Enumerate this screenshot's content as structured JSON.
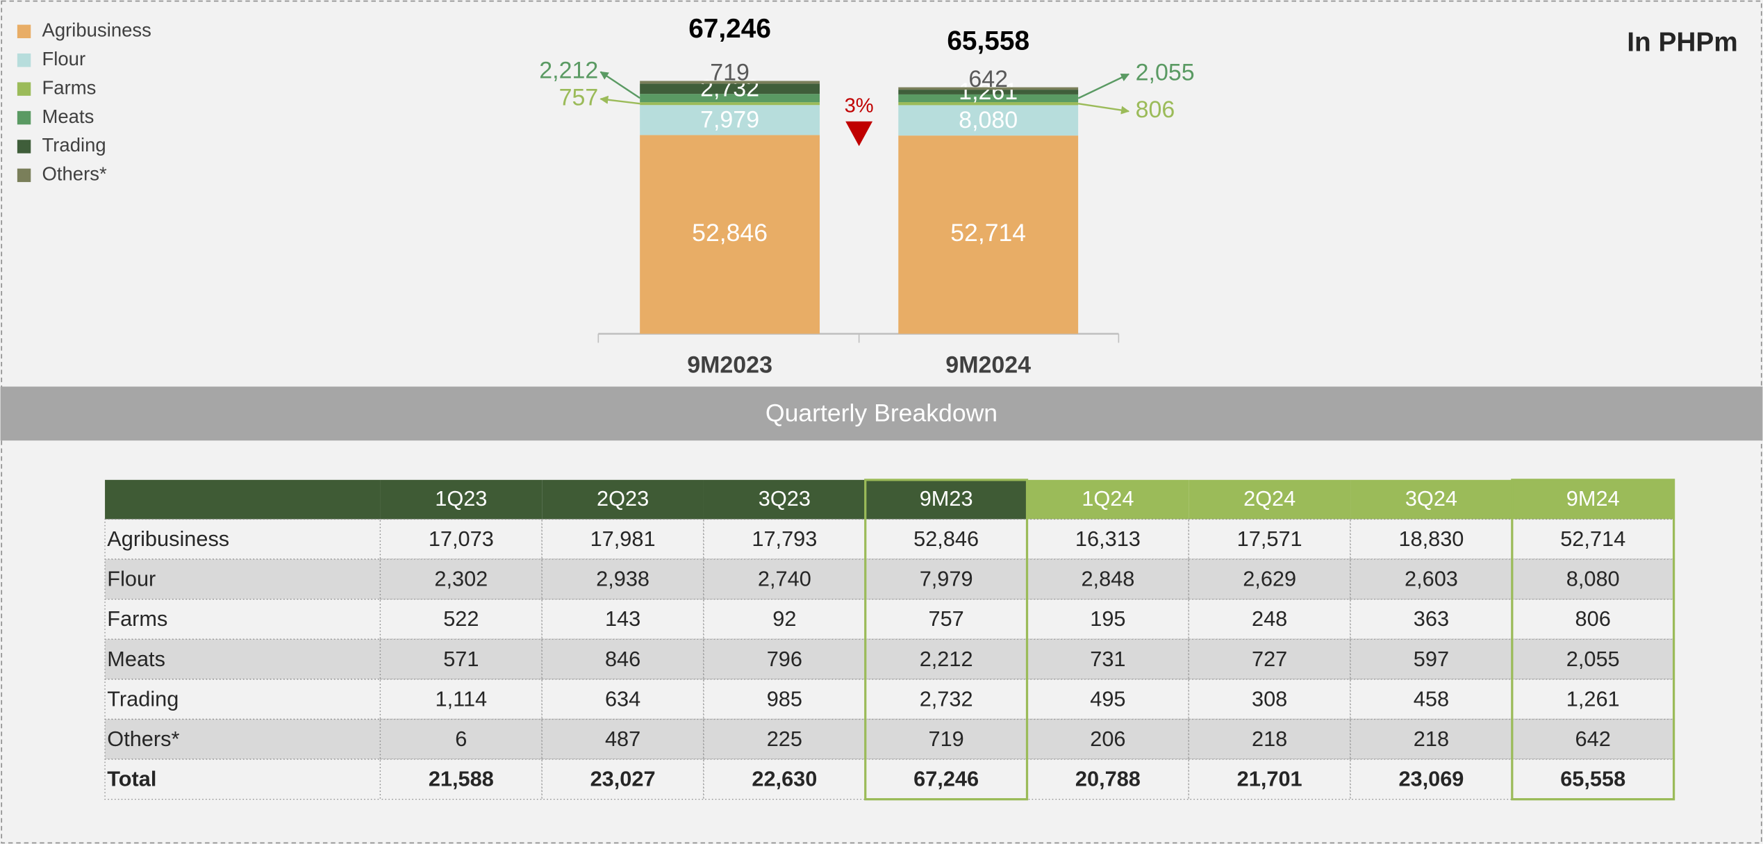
{
  "chart_data": {
    "type": "bar",
    "stacked": true,
    "categories": [
      "9M2023",
      "9M2024"
    ],
    "series": [
      {
        "name": "Agribusiness",
        "color": "#E8AD66",
        "values": [
          52846,
          52714
        ],
        "value_labels": [
          "52,846",
          "52,714"
        ]
      },
      {
        "name": "Flour",
        "color": "#B7DDDC",
        "values": [
          7979,
          8080
        ],
        "value_labels": [
          "7,979",
          "8,080"
        ]
      },
      {
        "name": "Farms",
        "color": "#9BBB59",
        "values": [
          757,
          806
        ],
        "value_labels": [
          "757",
          "806"
        ]
      },
      {
        "name": "Meats",
        "color": "#5A9A63",
        "values": [
          2212,
          2055
        ],
        "value_labels": [
          "2,212",
          "2,055"
        ]
      },
      {
        "name": "Trading",
        "color": "#3F5E3A",
        "values": [
          2732,
          1261
        ],
        "value_labels": [
          "2,732",
          "1,261"
        ]
      },
      {
        "name": "Others*",
        "color": "#7A7F5A",
        "values": [
          719,
          642
        ],
        "value_labels": [
          "719",
          "642"
        ]
      }
    ],
    "totals": [
      67246,
      65558
    ],
    "total_labels": [
      "67,246",
      "65,558"
    ],
    "change": {
      "value": 3,
      "label": "3%",
      "direction": "down",
      "color": "#C00000"
    },
    "unit_note": "In PHPm",
    "legend": "top-left"
  },
  "section_title": "Quarterly Breakdown",
  "table": {
    "header": [
      "1Q23",
      "2Q23",
      "3Q23",
      "9M23",
      "1Q24",
      "2Q24",
      "3Q24",
      "9M24"
    ],
    "rows": [
      {
        "label": "Agribusiness",
        "cells": [
          "17,073",
          "17,981",
          "17,793",
          "52,846",
          "16,313",
          "17,571",
          "18,830",
          "52,714"
        ]
      },
      {
        "label": "Flour",
        "cells": [
          "2,302",
          "2,938",
          "2,740",
          "7,979",
          "2,848",
          "2,629",
          "2,603",
          "8,080"
        ]
      },
      {
        "label": "Farms",
        "cells": [
          "522",
          "143",
          "92",
          "757",
          "195",
          "248",
          "363",
          "806"
        ]
      },
      {
        "label": "Meats",
        "cells": [
          "571",
          "846",
          "796",
          "2,212",
          "731",
          "727",
          "597",
          "2,055"
        ]
      },
      {
        "label": "Trading",
        "cells": [
          "1,114",
          "634",
          "985",
          "2,732",
          "495",
          "308",
          "458",
          "1,261"
        ]
      },
      {
        "label": "Others*",
        "cells": [
          "6",
          "487",
          "225",
          "719",
          "206",
          "218",
          "218",
          "642"
        ]
      },
      {
        "label": "Total",
        "cells": [
          "21,588",
          "23,027",
          "22,630",
          "67,246",
          "20,788",
          "21,701",
          "23,069",
          "65,558"
        ]
      }
    ]
  }
}
